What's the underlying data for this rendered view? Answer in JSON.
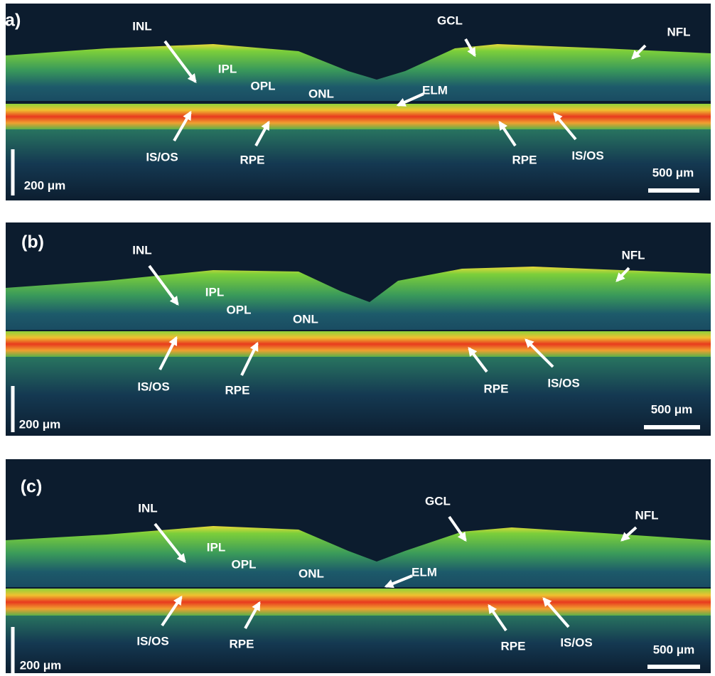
{
  "panels": [
    {
      "label": "(a)",
      "annotations": [
        "INL",
        "IPL",
        "OPL",
        "ONL",
        "GCL",
        "NFL",
        "ELM",
        "IS/OS",
        "RPE",
        "RPE",
        "IS/OS"
      ],
      "scale_bars": {
        "vertical": "200 μm",
        "horizontal": "500 μm"
      }
    },
    {
      "label": "(b)",
      "annotations": [
        "INL",
        "IPL",
        "OPL",
        "ONL",
        "NFL",
        "IS/OS",
        "RPE",
        "RPE",
        "IS/OS"
      ],
      "scale_bars": {
        "vertical": "200 μm",
        "horizontal": "500 μm"
      }
    },
    {
      "label": "(c)",
      "annotations": [
        "INL",
        "IPL",
        "OPL",
        "ONL",
        "GCL",
        "ELM",
        "NFL",
        "IS/OS",
        "RPE",
        "RPE",
        "IS/OS"
      ],
      "scale_bars": {
        "vertical": "200 μm",
        "horizontal": "500 μm"
      }
    }
  ]
}
